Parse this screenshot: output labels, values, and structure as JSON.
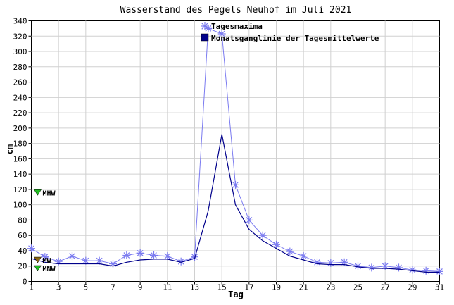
{
  "chart_data": {
    "type": "line",
    "title": "Wasserstand des Pegels Neuhof im Juli 2021",
    "xlabel": "Tag",
    "ylabel": "cm",
    "xlim": [
      1,
      31
    ],
    "ylim": [
      0,
      340
    ],
    "x_ticks": [
      1,
      3,
      5,
      7,
      9,
      11,
      13,
      15,
      17,
      19,
      21,
      23,
      25,
      27,
      29,
      31
    ],
    "y_ticks": [
      0,
      20,
      40,
      60,
      80,
      100,
      120,
      140,
      160,
      180,
      200,
      220,
      240,
      260,
      280,
      300,
      320,
      340
    ],
    "grid": true,
    "legend_position": "top-center",
    "x": [
      1,
      2,
      3,
      4,
      5,
      6,
      7,
      8,
      9,
      10,
      11,
      12,
      13,
      14,
      15,
      16,
      17,
      18,
      19,
      20,
      21,
      22,
      23,
      24,
      25,
      26,
      27,
      28,
      29,
      30,
      31
    ],
    "series": [
      {
        "name": "Tagesmaxima",
        "color": "#7b7bf0",
        "marker": "asterisk",
        "values": [
          43,
          32,
          26,
          33,
          27,
          27,
          23,
          34,
          37,
          34,
          33,
          26,
          32,
          330,
          323,
          126,
          80,
          60,
          48,
          39,
          33,
          25,
          24,
          25,
          20,
          18,
          20,
          18,
          15,
          14,
          13
        ]
      },
      {
        "name": "Monatsganglinie der Tagesmittelwerte",
        "color": "#00008b",
        "marker": "none",
        "values": [
          30,
          25,
          23,
          23,
          23,
          23,
          20,
          25,
          28,
          29,
          29,
          25,
          30,
          92,
          192,
          100,
          68,
          53,
          43,
          33,
          28,
          23,
          22,
          22,
          19,
          17,
          17,
          16,
          14,
          12,
          12
        ]
      }
    ],
    "reference_levels": [
      {
        "label": "MHW",
        "value": 116,
        "color": "#22bb22"
      },
      {
        "label": "MW",
        "value": 28,
        "color": "#8b6914"
      },
      {
        "label": "MNW",
        "value": 17,
        "color": "#22bb22"
      }
    ]
  }
}
